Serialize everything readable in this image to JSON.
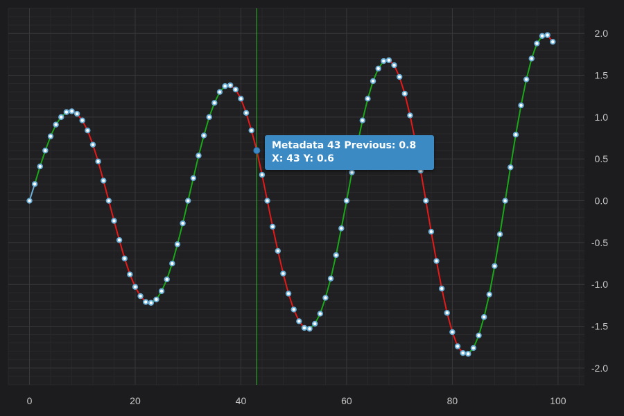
{
  "chart_data": {
    "type": "line",
    "x": [
      0,
      1,
      2,
      3,
      4,
      5,
      6,
      7,
      8,
      9,
      10,
      11,
      12,
      13,
      14,
      15,
      16,
      17,
      18,
      19,
      20,
      21,
      22,
      23,
      24,
      25,
      26,
      27,
      28,
      29,
      30,
      31,
      32,
      33,
      34,
      35,
      36,
      37,
      38,
      39,
      40,
      41,
      42,
      43,
      44,
      45,
      46,
      47,
      48,
      49,
      50,
      51,
      52,
      53,
      54,
      55,
      56,
      57,
      58,
      59,
      60,
      61,
      62,
      63,
      64,
      65,
      66,
      67,
      68,
      69,
      70,
      71,
      72,
      73,
      74,
      75,
      76,
      77,
      78,
      79,
      80,
      81,
      82,
      83,
      84,
      85,
      86,
      87,
      88,
      89,
      90,
      91,
      92,
      93,
      94,
      95,
      96,
      97,
      98,
      99
    ],
    "y": [
      0,
      0.2,
      0.41,
      0.6,
      0.77,
      0.91,
      1.0,
      1.06,
      1.07,
      1.04,
      0.96,
      0.84,
      0.67,
      0.47,
      0.24,
      0,
      -0.24,
      -0.47,
      -0.69,
      -0.88,
      -1.03,
      -1.14,
      -1.21,
      -1.22,
      -1.18,
      -1.08,
      -0.94,
      -0.75,
      -0.52,
      -0.27,
      0,
      0.27,
      0.54,
      0.78,
      1.0,
      1.17,
      1.3,
      1.37,
      1.38,
      1.33,
      1.22,
      1.05,
      0.84,
      0.6,
      0.31,
      0,
      -0.31,
      -0.6,
      -0.87,
      -1.11,
      -1.3,
      -1.44,
      -1.52,
      -1.53,
      -1.47,
      -1.35,
      -1.16,
      -0.93,
      -0.65,
      -0.33,
      0,
      0.34,
      0.66,
      0.96,
      1.22,
      1.43,
      1.58,
      1.67,
      1.68,
      1.62,
      1.48,
      1.28,
      1.02,
      0.71,
      0.36,
      0,
      -0.37,
      -0.72,
      -1.05,
      -1.34,
      -1.57,
      -1.74,
      -1.82,
      -1.83,
      -1.76,
      -1.61,
      -1.39,
      -1.12,
      -0.78,
      -0.4,
      0,
      0.4,
      0.79,
      1.14,
      1.45,
      1.7,
      1.88,
      1.97,
      1.98,
      1.9
    ],
    "xlim": [
      -4,
      105
    ],
    "ylim": [
      -2.2,
      2.3
    ],
    "x_ticks": [
      0,
      20,
      40,
      60,
      80,
      100
    ],
    "y_ticks": [
      2.0,
      1.5,
      1.0,
      0.5,
      0.0,
      -0.5,
      -1.0,
      -1.5,
      -2.0
    ],
    "y_tick_labels": [
      "2.0",
      "1.5",
      "1.0",
      "0.5",
      "0.0",
      "-0.5",
      "-1.0",
      "-1.5",
      "-2.0"
    ],
    "y_axis_side": "right",
    "grid": true,
    "colors": {
      "background": "#1c1c1e",
      "plot_background": "#202022",
      "grid_major": "#38383b",
      "grid_minor": "#29292b",
      "rising": "#1aa81a",
      "falling": "#e61919",
      "neutral": "#6baed6",
      "marker_stroke": "#6baed6",
      "marker_fill": "#ffffff",
      "cursor_line": "#2fbf2f"
    },
    "cursor": {
      "x": 43,
      "hit_y": 0.6,
      "tooltip_line1": "Metadata 43 Previous: 0.8",
      "tooltip_line2": "X: 43 Y: 0.6"
    }
  }
}
